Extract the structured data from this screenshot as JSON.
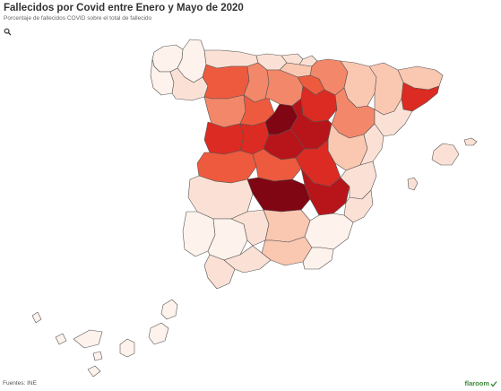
{
  "header": {
    "title": "Fallecidos por Covid entre Enero y Mayo de 2020",
    "subtitle": "Porcentaje de fallecidos COVID sobre el total de fallecido"
  },
  "toolbar": {
    "zoom_icon": "search-icon"
  },
  "footer": {
    "source": "Fuentes: INE",
    "brand": "flaroom"
  },
  "colors": {
    "c0": "#fdf2ec",
    "c1": "#fbe1d5",
    "c2": "#fac7b1",
    "c3": "#f3876a",
    "c4": "#ee5a3e",
    "c5": "#dc2b22",
    "c6": "#b8151b",
    "c7": "#7f0612",
    "brand": "#3a8a3a"
  },
  "provinces": [
    {
      "name": "A Coruña",
      "level": 0
    },
    {
      "name": "Lugo",
      "level": 0
    },
    {
      "name": "Pontevedra",
      "level": 0
    },
    {
      "name": "Ourense",
      "level": 1
    },
    {
      "name": "Asturias",
      "level": 1
    },
    {
      "name": "Cantabria",
      "level": 1
    },
    {
      "name": "Bizkaia",
      "level": 1
    },
    {
      "name": "Gipuzkoa",
      "level": 1
    },
    {
      "name": "Álava",
      "level": 2
    },
    {
      "name": "Navarra",
      "level": 3
    },
    {
      "name": "León",
      "level": 4
    },
    {
      "name": "Palencia",
      "level": 3
    },
    {
      "name": "Burgos",
      "level": 3
    },
    {
      "name": "La Rioja",
      "level": 4
    },
    {
      "name": "Huesca",
      "level": 2
    },
    {
      "name": "Girona",
      "level": 2
    },
    {
      "name": "Lleida",
      "level": 2
    },
    {
      "name": "Barcelona",
      "level": 5
    },
    {
      "name": "Zamora",
      "level": 3
    },
    {
      "name": "Valladolid",
      "level": 4
    },
    {
      "name": "Soria",
      "level": 5
    },
    {
      "name": "Zaragoza",
      "level": 3
    },
    {
      "name": "Tarragona",
      "level": 1
    },
    {
      "name": "Salamanca",
      "level": 5
    },
    {
      "name": "Ávila",
      "level": 5
    },
    {
      "name": "Segovia",
      "level": 7
    },
    {
      "name": "Guadalajara",
      "level": 6
    },
    {
      "name": "Teruel",
      "level": 2
    },
    {
      "name": "Madrid",
      "level": 6
    },
    {
      "name": "Cáceres",
      "level": 4
    },
    {
      "name": "Toledo",
      "level": 4
    },
    {
      "name": "Cuenca",
      "level": 5
    },
    {
      "name": "Castellón",
      "level": 1
    },
    {
      "name": "Badajoz",
      "level": 1
    },
    {
      "name": "Ciudad Real",
      "level": 7
    },
    {
      "name": "Albacete",
      "level": 6
    },
    {
      "name": "Valencia",
      "level": 1
    },
    {
      "name": "Alicante",
      "level": 1
    },
    {
      "name": "Huelva",
      "level": 0
    },
    {
      "name": "Sevilla",
      "level": 0
    },
    {
      "name": "Córdoba",
      "level": 1
    },
    {
      "name": "Jaén",
      "level": 2
    },
    {
      "name": "Granada",
      "level": 2
    },
    {
      "name": "Murcia",
      "level": 0
    },
    {
      "name": "Almería",
      "level": 0
    },
    {
      "name": "Cádiz",
      "level": 1
    },
    {
      "name": "Málaga",
      "level": 1
    },
    {
      "name": "Mallorca",
      "level": 1
    },
    {
      "name": "Menorca",
      "level": 1
    },
    {
      "name": "Ibiza",
      "level": 1
    },
    {
      "name": "Las Palmas",
      "level": 0
    },
    {
      "name": "Santa Cruz de Tenerife",
      "level": 0
    }
  ]
}
